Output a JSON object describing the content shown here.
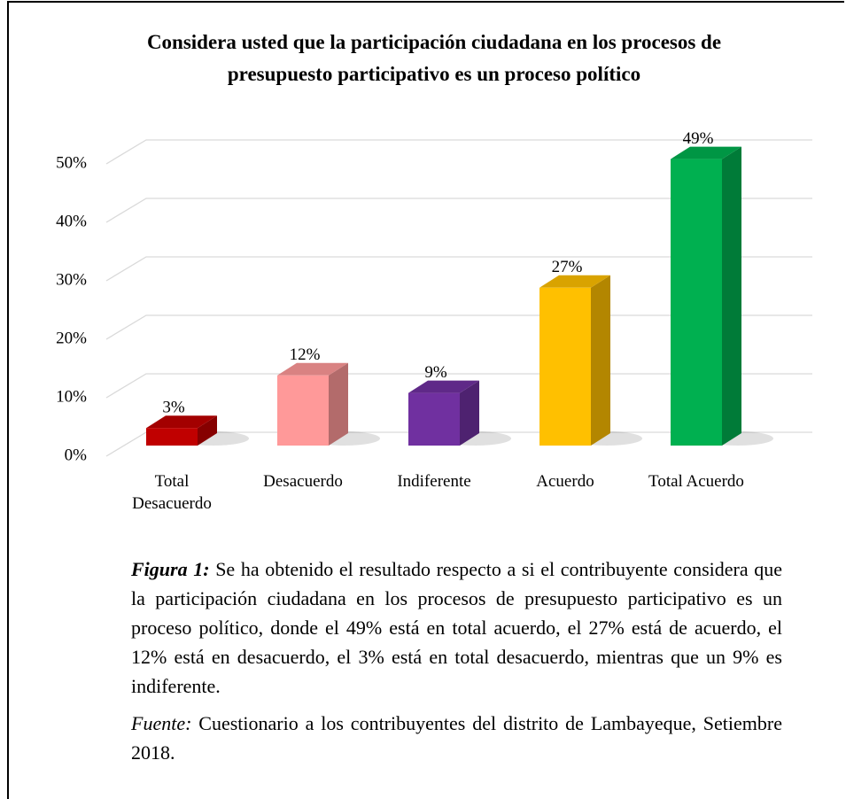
{
  "chart_data": {
    "type": "bar3d",
    "title": "Considera usted que la participación ciudadana en los procesos de presupuesto participativo es un proceso político",
    "categories": [
      "Total Desacuerdo",
      "Desacuerdo",
      "Indiferente",
      "Acuerdo",
      "Total Acuerdo"
    ],
    "values": [
      3,
      12,
      9,
      27,
      49
    ],
    "value_labels": [
      "3%",
      "12%",
      "9%",
      "27%",
      "49%"
    ],
    "colors": [
      "#c00000",
      "#ff9999",
      "#7030a0",
      "#ffc000",
      "#00b050"
    ],
    "ylim": [
      0,
      50
    ],
    "yticks": [
      {
        "value": 0,
        "label": "0%"
      },
      {
        "value": 10,
        "label": "10%"
      },
      {
        "value": 20,
        "label": "20%"
      },
      {
        "value": 30,
        "label": "30%"
      },
      {
        "value": 40,
        "label": "40%"
      },
      {
        "value": 50,
        "label": "50%"
      }
    ],
    "grid": true
  },
  "caption": {
    "label": "Figura 1:",
    "text": "Se ha obtenido el resultado respecto a si el contribuyente considera que la participación ciudadana en los procesos de presupuesto participativo es un proceso político, donde el 49% está en total acuerdo, el 27% está de acuerdo, el 12% está en desacuerdo, el 3% está en total desacuerdo, mientras que un 9% es indiferente."
  },
  "source": {
    "label": "Fuente:",
    "text": "Cuestionario a los contribuyentes del distrito de Lambayeque, Setiembre 2018."
  }
}
